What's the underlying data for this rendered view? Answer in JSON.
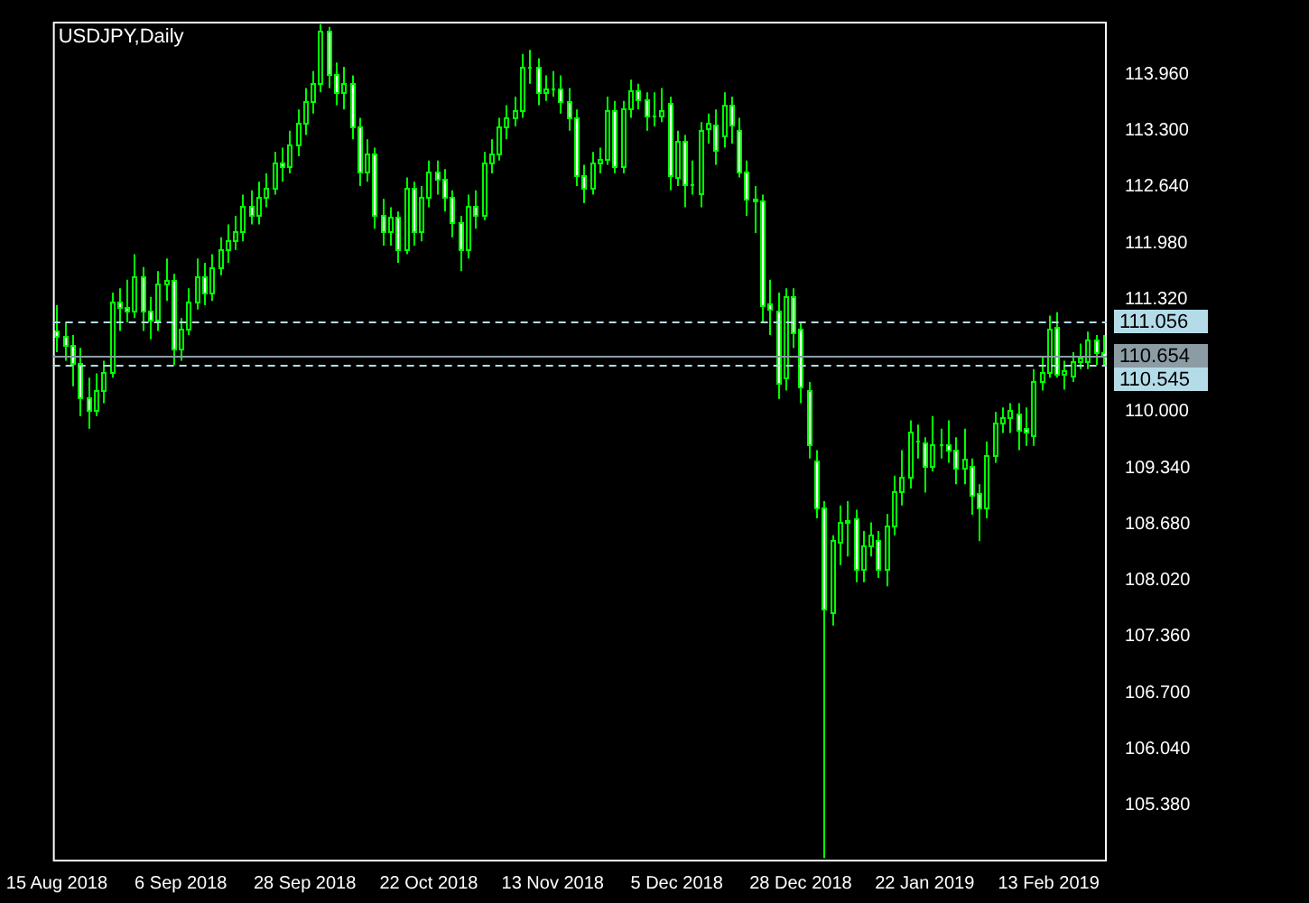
{
  "chart_data": {
    "type": "candlestick",
    "title": "USDJPY,Daily",
    "color": "#00ff00",
    "categories": [
      "15 Aug 2018",
      null,
      null,
      null,
      null,
      null,
      null,
      null,
      null,
      null,
      null,
      null,
      null,
      null,
      null,
      null,
      "6 Sep 2018",
      null,
      null,
      null,
      null,
      null,
      null,
      null,
      null,
      null,
      null,
      null,
      null,
      null,
      null,
      null,
      "28 Sep 2018",
      null,
      null,
      null,
      null,
      null,
      null,
      null,
      null,
      null,
      null,
      null,
      null,
      null,
      null,
      null,
      "22 Oct 2018",
      null,
      null,
      null,
      null,
      null,
      null,
      null,
      null,
      null,
      null,
      null,
      null,
      null,
      null,
      null,
      "13 Nov 2018",
      null,
      null,
      null,
      null,
      null,
      null,
      null,
      null,
      null,
      null,
      null,
      null,
      null,
      null,
      null,
      "5 Dec 2018",
      null,
      null,
      null,
      null,
      null,
      null,
      null,
      null,
      null,
      null,
      null,
      null,
      null,
      null,
      null,
      "28 Dec 2018",
      null,
      null,
      null,
      null,
      null,
      null,
      null,
      null,
      null,
      null,
      null,
      null,
      null,
      null,
      null,
      "22 Jan 2019",
      null,
      null,
      null,
      null,
      null,
      null,
      null,
      null,
      null,
      null,
      null,
      null,
      null,
      null,
      null,
      "13 Feb 2019",
      null,
      null,
      null,
      null,
      null,
      null,
      null
    ],
    "ohlc": [
      [
        110.95,
        111.25,
        110.7,
        110.88
      ],
      [
        110.88,
        111.05,
        110.6,
        110.78
      ],
      [
        110.78,
        110.9,
        110.3,
        110.57
      ],
      [
        110.57,
        110.75,
        109.95,
        110.16
      ],
      [
        110.16,
        110.4,
        109.8,
        110.02
      ],
      [
        110.02,
        110.45,
        109.95,
        110.26
      ],
      [
        110.26,
        110.6,
        110.1,
        110.47
      ],
      [
        110.47,
        111.4,
        110.4,
        111.29
      ],
      [
        111.29,
        111.45,
        110.95,
        111.23
      ],
      [
        111.23,
        111.55,
        111.05,
        111.19
      ],
      [
        111.19,
        111.85,
        111.1,
        111.6
      ],
      [
        111.6,
        111.7,
        110.95,
        111.19
      ],
      [
        111.19,
        111.35,
        110.85,
        111.09
      ],
      [
        111.09,
        111.65,
        110.95,
        111.5
      ],
      [
        111.5,
        111.8,
        111.3,
        111.54
      ],
      [
        111.54,
        111.62,
        110.55,
        110.74
      ],
      [
        110.74,
        111.1,
        110.6,
        110.98
      ],
      [
        110.98,
        111.45,
        110.9,
        111.29
      ],
      [
        111.29,
        111.8,
        111.2,
        111.6
      ],
      [
        111.6,
        111.75,
        111.25,
        111.39
      ],
      [
        111.39,
        111.85,
        111.3,
        111.7
      ],
      [
        111.7,
        112.05,
        111.6,
        111.91
      ],
      [
        111.91,
        112.2,
        111.75,
        112.01
      ],
      [
        112.01,
        112.3,
        111.9,
        112.11
      ],
      [
        112.11,
        112.55,
        112.0,
        112.42
      ],
      [
        112.42,
        112.6,
        112.2,
        112.32
      ],
      [
        112.32,
        112.7,
        112.2,
        112.52
      ],
      [
        112.52,
        112.8,
        112.4,
        112.63
      ],
      [
        112.63,
        113.05,
        112.55,
        112.93
      ],
      [
        112.93,
        113.1,
        112.7,
        112.89
      ],
      [
        112.89,
        113.3,
        112.8,
        113.14
      ],
      [
        113.14,
        113.55,
        113.0,
        113.39
      ],
      [
        113.39,
        113.8,
        113.25,
        113.65
      ],
      [
        113.65,
        114.0,
        113.5,
        113.86
      ],
      [
        113.86,
        114.55,
        113.75,
        114.47
      ],
      [
        114.47,
        114.52,
        113.8,
        113.96
      ],
      [
        113.96,
        114.1,
        113.6,
        113.75
      ],
      [
        113.75,
        114.05,
        113.55,
        113.86
      ],
      [
        113.86,
        113.95,
        113.2,
        113.34
      ],
      [
        113.34,
        113.45,
        112.65,
        112.83
      ],
      [
        112.83,
        113.2,
        112.7,
        113.04
      ],
      [
        113.04,
        113.1,
        112.15,
        112.32
      ],
      [
        112.32,
        112.5,
        111.95,
        112.11
      ],
      [
        112.11,
        112.4,
        111.95,
        112.28
      ],
      [
        112.28,
        112.35,
        111.75,
        111.91
      ],
      [
        111.91,
        112.75,
        111.85,
        112.63
      ],
      [
        112.63,
        112.7,
        111.95,
        112.11
      ],
      [
        112.11,
        112.65,
        112.0,
        112.52
      ],
      [
        112.52,
        112.95,
        112.4,
        112.83
      ],
      [
        112.83,
        112.95,
        112.55,
        112.73
      ],
      [
        112.73,
        112.85,
        112.35,
        112.52
      ],
      [
        112.52,
        112.6,
        112.05,
        112.22
      ],
      [
        112.22,
        112.3,
        111.65,
        111.91
      ],
      [
        111.91,
        112.55,
        111.8,
        112.42
      ],
      [
        112.42,
        112.6,
        112.15,
        112.32
      ],
      [
        112.32,
        113.05,
        112.25,
        112.93
      ],
      [
        112.93,
        113.2,
        112.8,
        113.04
      ],
      [
        113.04,
        113.45,
        112.95,
        113.34
      ],
      [
        113.34,
        113.6,
        113.2,
        113.45
      ],
      [
        113.45,
        113.7,
        113.35,
        113.55
      ],
      [
        113.55,
        114.2,
        113.45,
        114.06
      ],
      [
        114.06,
        114.25,
        113.85,
        114.06
      ],
      [
        114.06,
        114.15,
        113.6,
        113.75
      ],
      [
        113.75,
        113.95,
        113.65,
        113.8
      ],
      [
        113.8,
        114.0,
        113.7,
        113.8
      ],
      [
        113.8,
        113.95,
        113.5,
        113.65
      ],
      [
        113.65,
        113.8,
        113.3,
        113.45
      ],
      [
        113.45,
        113.55,
        112.65,
        112.77
      ],
      [
        112.77,
        112.9,
        112.45,
        112.63
      ],
      [
        112.63,
        113.05,
        112.55,
        112.93
      ],
      [
        112.93,
        113.1,
        112.8,
        112.97
      ],
      [
        112.97,
        113.7,
        112.9,
        113.55
      ],
      [
        113.55,
        113.65,
        112.8,
        112.89
      ],
      [
        112.89,
        113.65,
        112.8,
        113.57
      ],
      [
        113.57,
        113.9,
        113.45,
        113.77
      ],
      [
        113.77,
        113.85,
        113.55,
        113.67
      ],
      [
        113.67,
        113.75,
        113.3,
        113.47
      ],
      [
        113.47,
        113.75,
        113.35,
        113.47
      ],
      [
        113.47,
        113.8,
        113.4,
        113.55
      ],
      [
        113.63,
        113.7,
        112.6,
        112.77
      ],
      [
        112.75,
        113.3,
        112.65,
        113.18
      ],
      [
        113.18,
        113.25,
        112.4,
        112.67
      ],
      [
        112.67,
        112.95,
        112.55,
        112.67
      ],
      [
        112.56,
        113.4,
        112.4,
        113.3
      ],
      [
        113.33,
        113.5,
        113.15,
        113.39
      ],
      [
        113.37,
        113.55,
        112.9,
        113.08
      ],
      [
        113.24,
        113.75,
        113.1,
        113.61
      ],
      [
        113.61,
        113.7,
        113.15,
        113.37
      ],
      [
        113.3,
        113.45,
        112.75,
        112.81
      ],
      [
        112.81,
        112.95,
        112.3,
        112.5
      ],
      [
        112.5,
        112.65,
        112.1,
        112.48
      ],
      [
        112.48,
        112.55,
        111.05,
        111.25
      ],
      [
        111.27,
        111.55,
        110.9,
        111.21
      ],
      [
        111.19,
        111.4,
        110.15,
        110.33
      ],
      [
        110.41,
        111.45,
        110.25,
        111.35
      ],
      [
        111.35,
        111.45,
        110.75,
        110.94
      ],
      [
        110.98,
        111.05,
        110.1,
        110.29
      ],
      [
        110.26,
        110.35,
        109.45,
        109.61
      ],
      [
        109.42,
        109.55,
        108.75,
        108.87
      ],
      [
        108.87,
        108.95,
        104.76,
        107.68
      ],
      [
        107.64,
        108.55,
        107.49,
        108.5
      ],
      [
        108.48,
        108.9,
        108.2,
        108.7
      ],
      [
        108.7,
        108.95,
        108.3,
        108.73
      ],
      [
        108.75,
        108.85,
        108.0,
        108.15
      ],
      [
        108.15,
        108.6,
        108.0,
        108.44
      ],
      [
        108.44,
        108.7,
        108.3,
        108.55
      ],
      [
        108.5,
        108.6,
        108.05,
        108.15
      ],
      [
        108.15,
        108.8,
        107.95,
        108.66
      ],
      [
        108.66,
        109.25,
        108.55,
        109.07
      ],
      [
        109.07,
        109.55,
        108.9,
        109.24
      ],
      [
        109.24,
        109.9,
        109.1,
        109.77
      ],
      [
        109.67,
        109.85,
        109.45,
        109.67
      ],
      [
        109.63,
        109.7,
        109.05,
        109.36
      ],
      [
        109.36,
        109.95,
        109.3,
        109.61
      ],
      [
        109.61,
        109.8,
        109.45,
        109.61
      ],
      [
        109.61,
        109.9,
        109.4,
        109.55
      ],
      [
        109.55,
        109.7,
        109.15,
        109.34
      ],
      [
        109.34,
        109.8,
        109.15,
        109.45
      ],
      [
        109.36,
        109.45,
        108.79,
        109.03
      ],
      [
        109.05,
        109.15,
        108.48,
        108.87
      ],
      [
        108.87,
        109.65,
        108.75,
        109.49
      ],
      [
        109.49,
        110.0,
        109.4,
        109.87
      ],
      [
        109.87,
        110.05,
        109.75,
        109.94
      ],
      [
        109.94,
        110.1,
        109.75,
        110.02
      ],
      [
        109.98,
        110.1,
        109.55,
        109.79
      ],
      [
        109.81,
        110.05,
        109.6,
        109.77
      ],
      [
        109.73,
        110.5,
        109.6,
        110.37
      ],
      [
        110.37,
        110.65,
        110.25,
        110.47
      ],
      [
        110.47,
        111.13,
        110.4,
        110.98
      ],
      [
        111.0,
        111.17,
        110.4,
        110.45
      ],
      [
        110.45,
        110.6,
        110.26,
        110.49
      ],
      [
        110.43,
        110.7,
        110.35,
        110.59
      ],
      [
        110.59,
        110.8,
        110.5,
        110.63
      ],
      [
        110.59,
        110.94,
        110.5,
        110.84
      ],
      [
        110.84,
        110.9,
        110.55,
        110.69
      ],
      [
        110.69,
        110.9,
        110.55,
        110.654
      ]
    ],
    "colors": [
      "#ffffff",
      "#ffffff",
      "#ffffff",
      "#ffffff",
      "#ffffff",
      "#000000",
      "#000000",
      "#000000",
      "#ffffff",
      "#ffffff",
      "#000000",
      "#ffffff",
      "#ffffff",
      "#000000",
      "#000000",
      "#ffffff",
      "#000000",
      "#000000",
      "#000000",
      "#ffffff",
      "#000000",
      "#000000",
      "#000000",
      "#000000",
      "#000000",
      "#ffffff",
      "#000000",
      "#000000",
      "#000000",
      "#ffffff",
      "#000000",
      "#000000",
      "#000000",
      "#000000",
      "#000000",
      "#ffffff",
      "#ffffff",
      "#000000",
      "#ffffff",
      "#ffffff",
      "#000000",
      "#ffffff",
      "#ffffff",
      "#000000",
      "#ffffff",
      "#000000",
      "#ffffff",
      "#000000",
      "#000000",
      "#ffffff",
      "#ffffff",
      "#ffffff",
      "#ffffff",
      "#000000",
      "#ffffff",
      "#000000",
      "#000000",
      "#000000",
      "#000000",
      "#000000",
      "#000000",
      "#00ff00",
      "#ffffff",
      "#000000",
      "#00ff00",
      "#ffffff",
      "#ffffff",
      "#ffffff",
      "#ffffff",
      "#000000",
      "#000000",
      "#000000",
      "#ffffff",
      "#000000",
      "#000000",
      "#ffffff",
      "#ffffff",
      "#00ff00",
      "#000000",
      "#ffffff",
      "#000000",
      "#ffffff",
      "#00ff00",
      "#000000",
      "#000000",
      "#ffffff",
      "#000000",
      "#ffffff",
      "#ffffff",
      "#ffffff",
      "#ffffff",
      "#ffffff",
      "#ffffff",
      "#ffffff",
      "#000000",
      "#ffffff",
      "#ffffff",
      "#ffffff",
      "#ffffff",
      "#ffffff",
      "#000000",
      "#000000",
      "#000000",
      "#ffffff",
      "#000000",
      "#000000",
      "#ffffff",
      "#000000",
      "#000000",
      "#000000",
      "#000000",
      "#00ff00",
      "#ffffff",
      "#000000",
      "#00ff00",
      "#ffffff",
      "#ffffff",
      "#000000",
      "#ffffff",
      "#ffffff",
      "#000000",
      "#000000",
      "#000000",
      "#000000",
      "#ffffff",
      "#ffffff",
      "#000000",
      "#000000",
      "#000000",
      "#ffffff",
      "#000000",
      "#000000",
      "#000000",
      "#000000",
      "#ffffff",
      "#ffffff"
    ],
    "ylim": [
      104.72,
      114.58
    ],
    "yticks": [
      {
        "value": 105.38,
        "label": "105.380"
      },
      {
        "value": 106.04,
        "label": "106.040"
      },
      {
        "value": 106.7,
        "label": "106.700"
      },
      {
        "value": 107.36,
        "label": "107.360"
      },
      {
        "value": 108.02,
        "label": "108.020"
      },
      {
        "value": 108.68,
        "label": "108.680"
      },
      {
        "value": 109.34,
        "label": "109.340"
      },
      {
        "value": 110.0,
        "label": "110.000"
      },
      {
        "value": 111.32,
        "label": "111.320"
      },
      {
        "value": 111.98,
        "label": "111.980"
      },
      {
        "value": 112.64,
        "label": "112.640"
      },
      {
        "value": 113.3,
        "label": "113.300"
      },
      {
        "value": 113.96,
        "label": "113.960"
      }
    ],
    "ref_lines": [
      {
        "axis": "y",
        "value": 111.056,
        "label": "111.056",
        "color": "#b4dce8",
        "line_style": "dashed"
      },
      {
        "axis": "y",
        "value": 110.654,
        "label": "110.654",
        "color": "#8c9ca4",
        "line_style": "solid"
      },
      {
        "axis": "y",
        "value": 110.545,
        "label": "110.545",
        "color": "#b4dce8",
        "line_style": "dashed"
      }
    ]
  }
}
